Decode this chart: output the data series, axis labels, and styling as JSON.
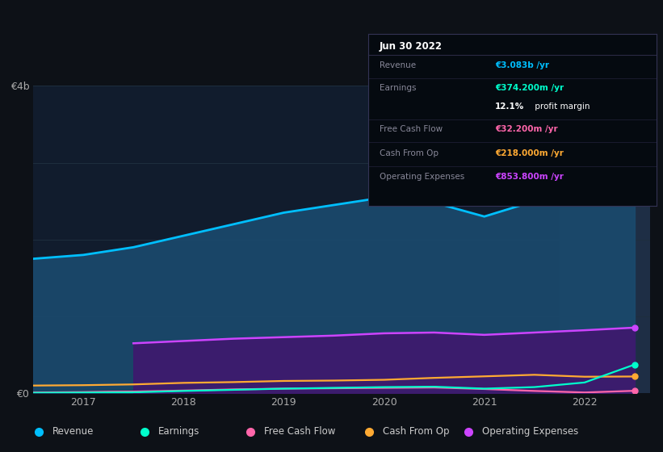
{
  "bg_color": "#0d1117",
  "chart_area_color": "#111c2d",
  "ylabel_top": "€4b",
  "ylabel_bottom": "€0",
  "ylim": [
    0,
    4000
  ],
  "x_years": [
    2016.5,
    2017.0,
    2017.25,
    2017.5,
    2018.0,
    2018.5,
    2019.0,
    2019.5,
    2020.0,
    2020.5,
    2021.0,
    2021.5,
    2022.0,
    2022.5
  ],
  "revenue": [
    1750,
    1800,
    1850,
    1900,
    2050,
    2200,
    2350,
    2450,
    2550,
    2480,
    2300,
    2500,
    2800,
    3083
  ],
  "operating_expenses": [
    0,
    0,
    0,
    650,
    680,
    710,
    730,
    750,
    780,
    790,
    760,
    790,
    820,
    854
  ],
  "cash_from_op": [
    100,
    105,
    110,
    115,
    135,
    145,
    160,
    165,
    175,
    200,
    220,
    240,
    215,
    218
  ],
  "earnings": [
    5,
    8,
    10,
    12,
    30,
    45,
    60,
    70,
    80,
    85,
    60,
    80,
    140,
    374
  ],
  "free_cash_flow": [
    10,
    15,
    20,
    22,
    35,
    50,
    60,
    65,
    70,
    75,
    55,
    30,
    10,
    32
  ],
  "revenue_color": "#00bfff",
  "revenue_fill": "#1a4a6e",
  "op_exp_color": "#cc44ff",
  "op_exp_fill": "#3d1a6e",
  "cash_from_op_color": "#ffaa33",
  "earnings_color": "#00ffcc",
  "free_cash_flow_color": "#ff66aa",
  "highlight_x": 2021.75,
  "highlight_color": "#1e2e45",
  "x_ticks": [
    2017,
    2018,
    2019,
    2020,
    2021,
    2022
  ],
  "grid_levels": [
    1000,
    2000,
    3000,
    4000
  ],
  "grid_color": "#1e2e3e",
  "tooltip": {
    "title": "Jun 30 2022",
    "rows": [
      {
        "label": "Revenue",
        "value": "€3.083b /yr",
        "value_color": "#00bfff",
        "divider": true
      },
      {
        "label": "Earnings",
        "value": "€374.200m /yr",
        "value_color": "#00ffcc",
        "divider": false
      },
      {
        "label": "",
        "value": "12.1% profit margin",
        "value_color": "#ffffff",
        "divider": true,
        "bold_prefix": "12.1%"
      },
      {
        "label": "Free Cash Flow",
        "value": "€32.200m /yr",
        "value_color": "#ff66aa",
        "divider": true
      },
      {
        "label": "Cash From Op",
        "value": "€218.000m /yr",
        "value_color": "#ffaa33",
        "divider": true
      },
      {
        "label": "Operating Expenses",
        "value": "€853.800m /yr",
        "value_color": "#cc44ff",
        "divider": false
      }
    ]
  },
  "legend_items": [
    {
      "label": "Revenue",
      "color": "#00bfff"
    },
    {
      "label": "Earnings",
      "color": "#00ffcc"
    },
    {
      "label": "Free Cash Flow",
      "color": "#ff66aa"
    },
    {
      "label": "Cash From Op",
      "color": "#ffaa33"
    },
    {
      "label": "Operating Expenses",
      "color": "#cc44ff"
    }
  ]
}
